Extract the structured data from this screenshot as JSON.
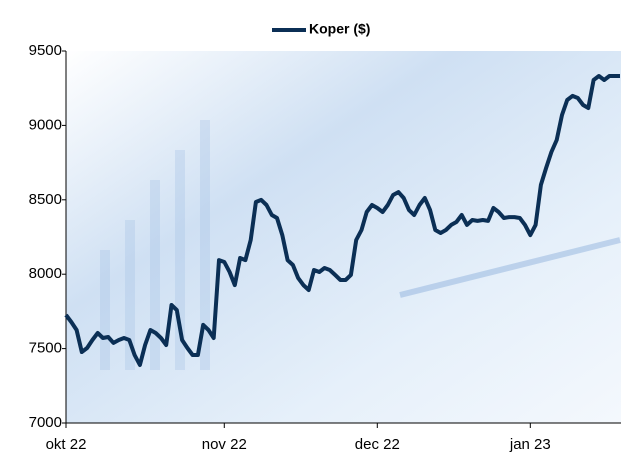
{
  "chart_data": {
    "type": "line",
    "categories": [
      "okt 22",
      null,
      null,
      null,
      null,
      null,
      null,
      null,
      null,
      null,
      null,
      null,
      null,
      null,
      null,
      null,
      null,
      null,
      null,
      null,
      null,
      null,
      null,
      null,
      null,
      null,
      null,
      null,
      null,
      null,
      "nov 22",
      null,
      null,
      null,
      null,
      null,
      null,
      null,
      null,
      null,
      null,
      null,
      null,
      null,
      null,
      null,
      null,
      null,
      null,
      null,
      null,
      null,
      null,
      null,
      null,
      null,
      null,
      null,
      null,
      "dec 22",
      null,
      null,
      null,
      null,
      null,
      null,
      null,
      null,
      null,
      null,
      null,
      null,
      null,
      null,
      null,
      null,
      null,
      null,
      null,
      null,
      null,
      null,
      null,
      null,
      null,
      null,
      null,
      null,
      "jan 23",
      null,
      null,
      null,
      null,
      null,
      null,
      null,
      null,
      null,
      null,
      null,
      null,
      null,
      null,
      null,
      null,
      null
    ],
    "series": [
      {
        "name": "Koper ($)",
        "color": "#0b2f55",
        "legend_color": "#7030a0",
        "values": [
          7726,
          7679,
          7625,
          7477,
          7504,
          7558,
          7605,
          7571,
          7578,
          7538,
          7558,
          7571,
          7558,
          7457,
          7390,
          7524,
          7625,
          7605,
          7571,
          7524,
          7793,
          7759,
          7558,
          7504,
          7457,
          7457,
          7659,
          7625,
          7571,
          8095,
          8082,
          8015,
          7927,
          8109,
          8095,
          8230,
          8485,
          8499,
          8465,
          8398,
          8378,
          8263,
          8095,
          8062,
          7974,
          7927,
          7894,
          8028,
          8015,
          8042,
          8028,
          7995,
          7961,
          7961,
          7995,
          8230,
          8297,
          8418,
          8465,
          8445,
          8418,
          8465,
          8532,
          8552,
          8512,
          8431,
          8398,
          8465,
          8512,
          8431,
          8297,
          8277,
          8297,
          8331,
          8351,
          8398,
          8331,
          8364,
          8358,
          8364,
          8358,
          8445,
          8418,
          8378,
          8384,
          8384,
          8378,
          8331,
          8263,
          8331,
          8600,
          8714,
          8821,
          8902,
          9070,
          9171,
          9198,
          9184,
          9137,
          9117,
          9305,
          9332,
          9305,
          9332,
          9332,
          9332
        ]
      }
    ],
    "ylim": [
      7000,
      9500
    ],
    "yticks": [
      7000,
      7500,
      8000,
      8500,
      9000,
      9500
    ],
    "grid": false
  }
}
